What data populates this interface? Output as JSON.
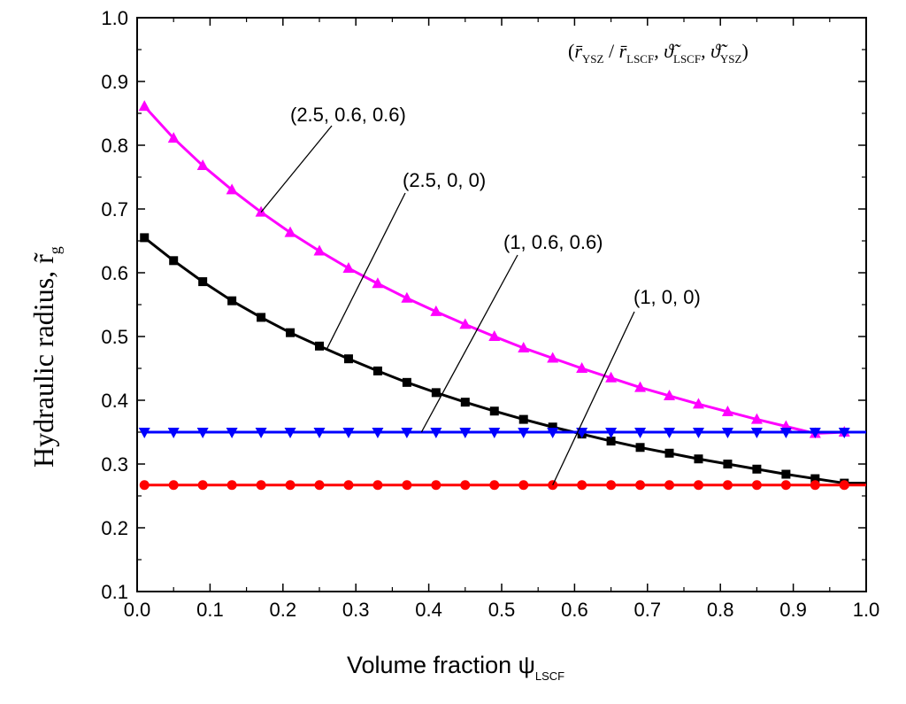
{
  "chart_data": {
    "type": "line",
    "title": "",
    "xlabel": "Volume fraction ψ",
    "xlabel_sub": "LSCF",
    "ylabel": "Hydraulic radius, r̃",
    "ylabel_sub": "g",
    "xlim": [
      0.0,
      1.0
    ],
    "ylim": [
      0.1,
      1.0
    ],
    "xticks": [
      "0.0",
      "0.1",
      "0.2",
      "0.3",
      "0.4",
      "0.5",
      "0.6",
      "0.7",
      "0.8",
      "0.9",
      "1.0"
    ],
    "yticks": [
      "0.1",
      "0.2",
      "0.3",
      "0.4",
      "0.5",
      "0.6",
      "0.7",
      "0.8",
      "0.9",
      "1.0"
    ],
    "legend_title": {
      "open": "(",
      "r1": "r̄",
      "r1_sub": "YSZ",
      "slash": " / ",
      "r2": "r̄",
      "r2_sub": "LSCF",
      "sep1": ", ",
      "t1": "ϑ̃",
      "t1_sub": "LSCF",
      "sep2": ", ",
      "t2": "ϑ̃",
      "t2_sub": "YSZ",
      "close": ")"
    },
    "x": [
      0.01,
      0.05,
      0.09,
      0.13,
      0.17,
      0.21,
      0.25,
      0.29,
      0.33,
      0.37,
      0.41,
      0.45,
      0.49,
      0.53,
      0.57,
      0.61,
      0.65,
      0.69,
      0.73,
      0.77,
      0.81,
      0.85,
      0.89,
      0.93,
      0.97
    ],
    "series": [
      {
        "name": "(2.5, 0.6, 0.6)",
        "color": "#ff00ff",
        "marker": "triangle-up",
        "values": [
          0.861,
          0.811,
          0.768,
          0.73,
          0.695,
          0.663,
          0.634,
          0.607,
          0.583,
          0.56,
          0.539,
          0.519,
          0.5,
          0.482,
          0.466,
          0.45,
          0.435,
          0.42,
          0.407,
          0.394,
          0.382,
          0.37,
          0.359,
          0.348,
          0.35
        ]
      },
      {
        "name": "(2.5, 0, 0)",
        "color": "#000000",
        "marker": "square",
        "values": [
          0.655,
          0.619,
          0.586,
          0.556,
          0.53,
          0.506,
          0.485,
          0.465,
          0.446,
          0.428,
          0.412,
          0.397,
          0.383,
          0.37,
          0.358,
          0.347,
          0.336,
          0.326,
          0.317,
          0.308,
          0.3,
          0.292,
          0.284,
          0.277,
          0.27
        ]
      },
      {
        "name": "(1, 0.6, 0.6)",
        "color": "#0000ff",
        "marker": "triangle-down",
        "values": [
          0.35,
          0.35,
          0.35,
          0.35,
          0.35,
          0.35,
          0.35,
          0.35,
          0.35,
          0.35,
          0.35,
          0.35,
          0.35,
          0.35,
          0.35,
          0.35,
          0.35,
          0.35,
          0.35,
          0.35,
          0.35,
          0.35,
          0.35,
          0.35,
          0.35
        ]
      },
      {
        "name": "(1, 0, 0)",
        "color": "#ff0000",
        "marker": "circle",
        "values": [
          0.267,
          0.267,
          0.267,
          0.267,
          0.267,
          0.267,
          0.267,
          0.267,
          0.267,
          0.267,
          0.267,
          0.267,
          0.267,
          0.267,
          0.267,
          0.267,
          0.267,
          0.267,
          0.267,
          0.267,
          0.267,
          0.267,
          0.267,
          0.267,
          0.267
        ]
      }
    ],
    "annotations": [
      {
        "text": "(2.5, 0.6, 0.6)",
        "series": 0,
        "point_x": 0.17,
        "point_y": 0.695
      },
      {
        "text": "(2.5, 0, 0)",
        "series": 1,
        "point_x": 0.26,
        "point_y": 0.48
      },
      {
        "text": "(1, 0.6, 0.6)",
        "series": 2,
        "point_x": 0.39,
        "point_y": 0.35
      },
      {
        "text": "(1, 0, 0)",
        "series": 3,
        "point_x": 0.57,
        "point_y": 0.267
      }
    ]
  }
}
